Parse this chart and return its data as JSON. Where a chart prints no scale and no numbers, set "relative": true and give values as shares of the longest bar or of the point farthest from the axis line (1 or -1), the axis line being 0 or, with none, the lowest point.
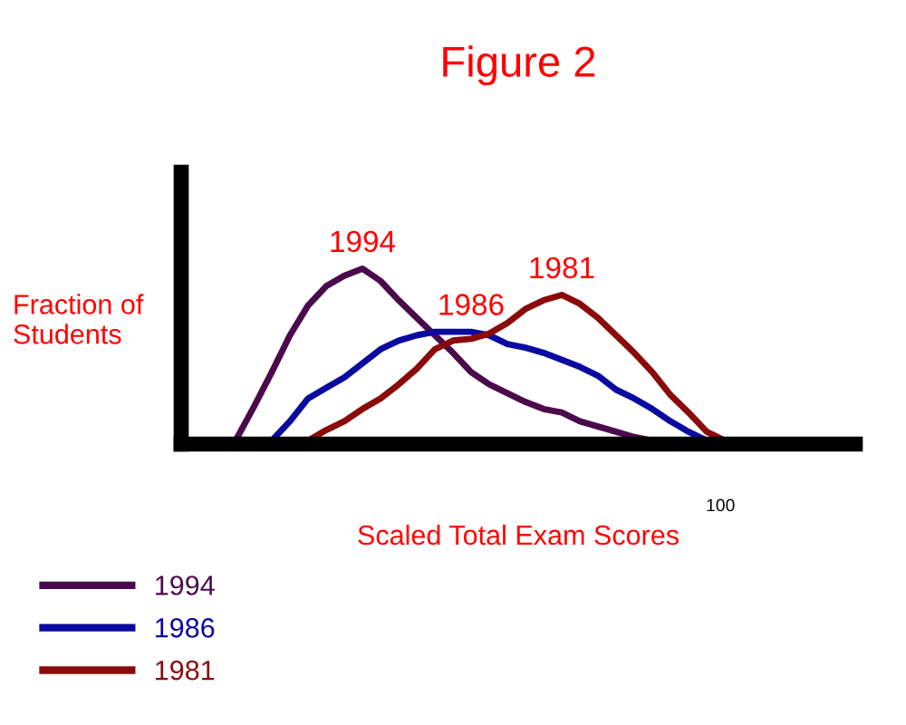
{
  "chart_data": {
    "type": "line",
    "title": "Figure 2",
    "xlabel": "Scaled Total Exam Scores",
    "ylabel": "Fraction of\nStudents",
    "relative": true,
    "legend": "bottom",
    "marker": "none",
    "line_style": "solid",
    "annotations": [
      "100"
    ],
    "categories": [
      null,
      null,
      null,
      null,
      null,
      null,
      null,
      null,
      null,
      null,
      null,
      null,
      null,
      null,
      null,
      null,
      null,
      null,
      null,
      null,
      null,
      null,
      null,
      null,
      null,
      null,
      null,
      null,
      null,
      null,
      null,
      null,
      null,
      null,
      null,
      null,
      null,
      null
    ],
    "series": [
      {
        "name": "1994",
        "color": "#4b0a4b",
        "values": [
          null,
          null,
          null,
          0.02,
          0.21,
          0.41,
          0.62,
          0.79,
          0.9,
          0.96,
          1.0,
          0.93,
          0.82,
          0.72,
          0.62,
          0.52,
          0.41,
          0.34,
          0.29,
          0.24,
          0.2,
          0.18,
          0.13,
          0.1,
          0.07,
          0.04,
          0.02,
          null,
          null,
          null,
          null,
          null,
          null,
          null,
          null,
          null,
          null,
          null
        ]
      },
      {
        "name": "1986",
        "color": "#0a0aa0",
        "values": [
          null,
          null,
          null,
          null,
          null,
          0.02,
          0.13,
          0.26,
          0.32,
          0.38,
          0.46,
          0.54,
          0.59,
          0.62,
          0.64,
          0.64,
          0.64,
          0.62,
          0.57,
          0.55,
          0.52,
          0.48,
          0.44,
          0.39,
          0.31,
          0.26,
          0.2,
          0.13,
          0.07,
          0.02,
          null,
          null,
          null,
          null,
          null,
          null,
          null,
          null
        ]
      },
      {
        "name": "1981",
        "color": "#8b0a0a",
        "values": [
          null,
          null,
          null,
          null,
          null,
          null,
          null,
          0.02,
          0.08,
          0.13,
          0.2,
          0.26,
          0.34,
          0.43,
          0.54,
          0.59,
          0.6,
          0.63,
          0.69,
          0.77,
          0.82,
          0.85,
          0.8,
          0.72,
          0.62,
          0.52,
          0.41,
          0.28,
          0.18,
          0.07,
          0.02,
          null,
          null,
          null,
          null,
          null,
          null,
          null
        ]
      }
    ]
  }
}
